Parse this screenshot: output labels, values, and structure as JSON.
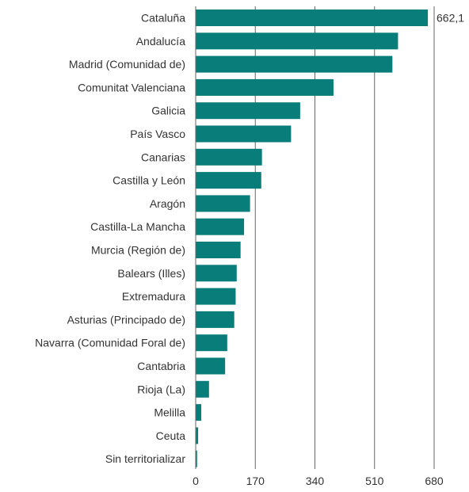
{
  "colors": {
    "bar": "#087D7A",
    "grid": "#666666",
    "text": "#333333"
  },
  "chart_data": {
    "type": "bar",
    "orientation": "horizontal",
    "title": "",
    "xlabel": "",
    "ylabel": "",
    "xlim": [
      0,
      680
    ],
    "ticks": [
      0,
      170,
      340,
      510,
      680
    ],
    "tick_labels": [
      "0",
      "170",
      "340",
      "510",
      "680"
    ],
    "grid": "vertical",
    "categories": [
      "Cataluña",
      "Andalucía",
      "Madrid (Comunidad de)",
      "Comunitat Valenciana",
      "Galicia",
      "País Vasco",
      "Canarias",
      "Castilla y León",
      "Aragón",
      "Castilla-La Mancha",
      "Murcia (Región de)",
      "Balears (Illes)",
      "Extremadura",
      "Asturias (Principado de)",
      "Navarra (Comunidad Foral de)",
      "Cantabria",
      "Rioja (La)",
      "Melilla",
      "Ceuta",
      "Sin territorializar"
    ],
    "values": [
      662.1,
      577,
      561,
      393,
      298,
      272,
      189,
      187,
      155,
      138,
      128,
      117,
      114,
      110,
      90,
      84,
      38,
      16,
      7,
      4
    ],
    "data_labels": [
      {
        "category": "Cataluña",
        "text": "662,1"
      }
    ]
  }
}
